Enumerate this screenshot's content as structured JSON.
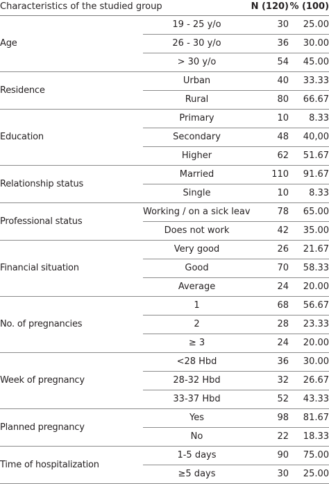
{
  "header": {
    "characteristics": "Characteristics of the studied group",
    "n": "N (120)",
    "pct": "% (100)"
  },
  "groups": [
    {
      "label": "Age",
      "rows": [
        {
          "sub": "19 - 25 y/o",
          "n": "30",
          "pct": "25.00"
        },
        {
          "sub": "26 - 30 y/o",
          "n": "36",
          "pct": "30.00"
        },
        {
          "sub": "> 30 y/o",
          "n": "54",
          "pct": "45.00"
        }
      ]
    },
    {
      "label": "Residence",
      "rows": [
        {
          "sub": "Urban",
          "n": "40",
          "pct": "33.33"
        },
        {
          "sub": "Rural",
          "n": "80",
          "pct": "66.67"
        }
      ]
    },
    {
      "label": "Education",
      "rows": [
        {
          "sub": "Primary",
          "n": "10",
          "pct": "8.33"
        },
        {
          "sub": "Secondary",
          "n": "48",
          "pct": "40,00"
        },
        {
          "sub": "Higher",
          "n": "62",
          "pct": "51.67"
        }
      ]
    },
    {
      "label": "Relationship status",
      "rows": [
        {
          "sub": "Married",
          "n": "110",
          "pct": "91.67"
        },
        {
          "sub": "Single",
          "n": "10",
          "pct": "8.33"
        }
      ]
    },
    {
      "label": "Professional status",
      "rows": [
        {
          "sub": "Working / on a sick leave",
          "n": "78",
          "pct": "65.00"
        },
        {
          "sub": "Does not work",
          "n": "42",
          "pct": "35.00"
        }
      ]
    },
    {
      "label": "Financial situation",
      "rows": [
        {
          "sub": "Very good",
          "n": "26",
          "pct": "21.67"
        },
        {
          "sub": "Good",
          "n": "70",
          "pct": "58.33"
        },
        {
          "sub": "Average",
          "n": "24",
          "pct": "20.00"
        }
      ]
    },
    {
      "label": "No. of pregnancies",
      "rows": [
        {
          "sub": "1",
          "n": "68",
          "pct": "56.67"
        },
        {
          "sub": "2",
          "n": "28",
          "pct": "23.33"
        },
        {
          "sub": "≥ 3",
          "n": "24",
          "pct": "20.00"
        }
      ]
    },
    {
      "label": "Week of pregnancy",
      "rows": [
        {
          "sub": "<28 Hbd",
          "n": "36",
          "pct": "30.00"
        },
        {
          "sub": "28-32 Hbd",
          "n": "32",
          "pct": "26.67"
        },
        {
          "sub": "33-37 Hbd",
          "n": "52",
          "pct": "43.33"
        }
      ]
    },
    {
      "label": "Planned pregnancy",
      "rows": [
        {
          "sub": "Yes",
          "n": "98",
          "pct": "81.67"
        },
        {
          "sub": "No",
          "n": "22",
          "pct": "18.33"
        }
      ]
    },
    {
      "label": "Time of hospitalization",
      "rows": [
        {
          "sub": "1-5 days",
          "n": "90",
          "pct": "75.00"
        },
        {
          "sub": "≥5 days",
          "n": "30",
          "pct": "25.00"
        }
      ]
    }
  ]
}
